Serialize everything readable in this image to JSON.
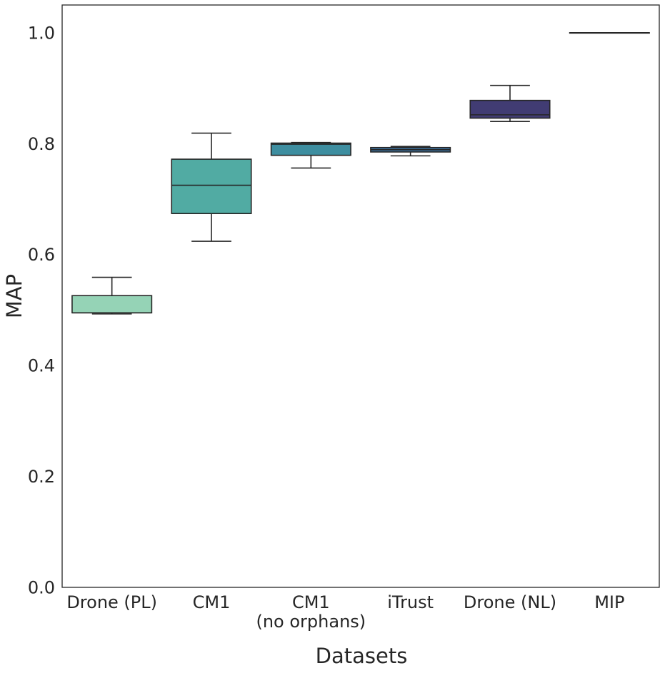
{
  "chart_data": {
    "type": "box",
    "title": "",
    "xlabel": "Datasets",
    "ylabel": "MAP",
    "ylim": [
      0.0,
      1.05
    ],
    "yticks": [
      0.0,
      0.2,
      0.4,
      0.6,
      0.8,
      1.0
    ],
    "ytick_labels": [
      "0.0",
      "0.2",
      "0.4",
      "0.6",
      "0.8",
      "1.0"
    ],
    "grid": false,
    "categories": [
      {
        "label": "Drone (PL)",
        "sublabel": "",
        "color": "#95d3b6",
        "whisker_low": 0.493,
        "q1": 0.495,
        "median": 0.495,
        "q3": 0.526,
        "whisker_high": 0.559
      },
      {
        "label": "CM1",
        "sublabel": "",
        "color": "#51aba3",
        "whisker_low": 0.624,
        "q1": 0.674,
        "median": 0.725,
        "q3": 0.772,
        "whisker_high": 0.819
      },
      {
        "label": "CM1",
        "sublabel": "(no orphans)",
        "color": "#3e8ea0",
        "whisker_low": 0.756,
        "q1": 0.779,
        "median": 0.799,
        "q3": 0.801,
        "whisker_high": 0.802
      },
      {
        "label": "iTrust",
        "sublabel": "",
        "color": "#3a6f9a",
        "whisker_low": 0.778,
        "q1": 0.785,
        "median": 0.789,
        "q3": 0.793,
        "whisker_high": 0.795
      },
      {
        "label": "Drone (NL)",
        "sublabel": "",
        "color": "#413c73",
        "whisker_low": 0.84,
        "q1": 0.846,
        "median": 0.852,
        "q3": 0.878,
        "whisker_high": 0.905
      },
      {
        "label": "MIP",
        "sublabel": "",
        "color": "#2a1a35",
        "whisker_low": 1.0,
        "q1": 1.0,
        "median": 1.0,
        "q3": 1.0,
        "whisker_high": 1.0
      }
    ]
  }
}
